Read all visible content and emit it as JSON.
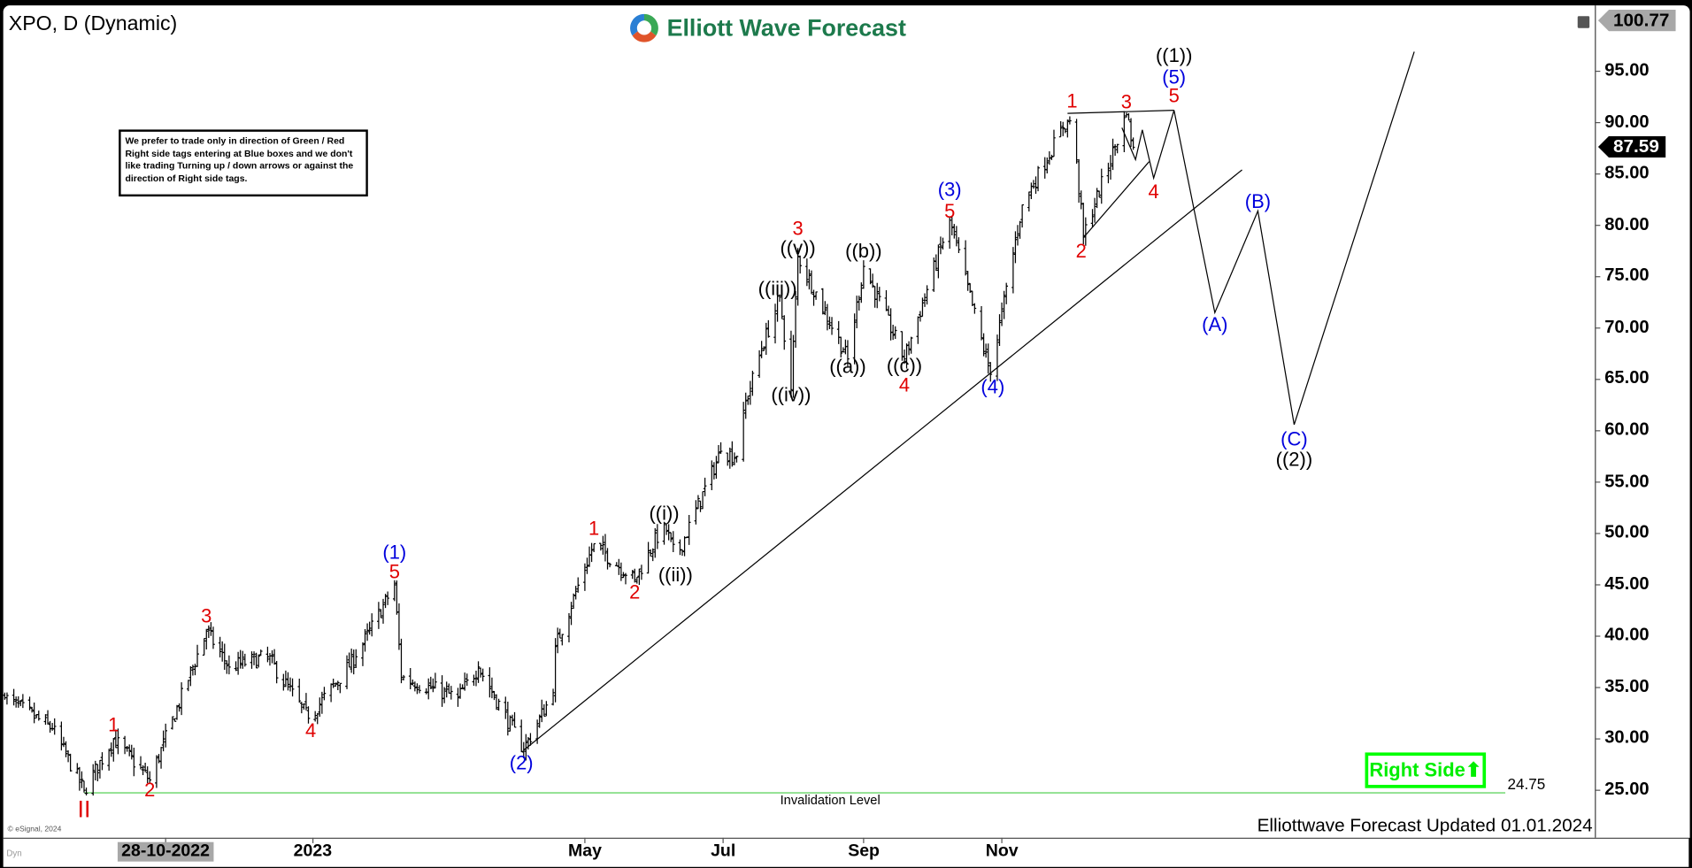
{
  "header": {
    "title": "XPO, D (Dynamic)",
    "brand": "Elliott Wave Forecast",
    "note": "We prefer to trade only in direction of Green / Red Right side tags entering at Blue boxes and we don't like trading Turning up / down arrows or against the direction of Right side tags."
  },
  "footer": {
    "updated": "Elliottwave Forecast Updated 01.01.2024",
    "copyright": "© eSignal, 2024",
    "dyn": "Dyn",
    "invalidation_label": "Invalidation Level",
    "invalidation_value": "24.75",
    "right_side": "Right Side",
    "right_side_icon": "arrow-up-icon"
  },
  "colors": {
    "red": "#e00000",
    "blue": "#0000dd",
    "green": "#00ee00",
    "brand": "#1d7a4c"
  },
  "chart_data": {
    "type": "ohlc",
    "symbol": "XPO",
    "interval": "D",
    "y_axis": {
      "ticks": [
        "25.00",
        "30.00",
        "35.00",
        "40.00",
        "45.00",
        "50.00",
        "55.00",
        "60.00",
        "65.00",
        "70.00",
        "75.00",
        "80.00",
        "85.00",
        "90.00",
        "95.00"
      ],
      "tick_values": [
        25,
        30,
        35,
        40,
        45,
        50,
        55,
        60,
        65,
        70,
        75,
        80,
        85,
        90,
        95
      ],
      "high_tag": "100.77",
      "last_price": "87.59"
    },
    "x_axis": {
      "ticks": [
        {
          "label": "28-10-2022",
          "date": "2022-10-28",
          "highlight": true
        },
        {
          "label": "2023",
          "date": "2023-01-01"
        },
        {
          "label": "May",
          "date": "2023-05-01"
        },
        {
          "label": "Jul",
          "date": "2023-07-01"
        },
        {
          "label": "Sep",
          "date": "2023-09-01"
        },
        {
          "label": "Nov",
          "date": "2023-11-01"
        }
      ]
    },
    "invalidation_level": 24.75,
    "price_swings": [
      [
        "2022-08-18",
        34
      ],
      [
        "2022-09-08",
        31
      ],
      [
        "2022-09-22",
        25
      ],
      [
        "2022-10-05",
        30
      ],
      [
        "2022-10-21",
        26
      ],
      [
        "2022-11-15",
        40.5
      ],
      [
        "2022-11-25",
        37
      ],
      [
        "2022-12-12",
        38
      ],
      [
        "2022-12-30",
        32
      ],
      [
        "2023-01-20",
        38
      ],
      [
        "2023-02-06",
        45
      ],
      [
        "2023-02-09",
        36
      ],
      [
        "2023-03-06",
        34
      ],
      [
        "2023-03-15",
        37
      ],
      [
        "2023-04-04",
        29
      ],
      [
        "2023-04-17",
        34.5
      ],
      [
        "2023-04-18",
        39
      ],
      [
        "2023-05-05",
        49
      ],
      [
        "2023-05-23",
        45.5
      ],
      [
        "2023-06-05",
        51
      ],
      [
        "2023-06-10",
        47.5
      ],
      [
        "2023-06-30",
        58
      ],
      [
        "2023-07-07",
        57.5
      ],
      [
        "2023-07-10",
        62
      ],
      [
        "2023-07-18",
        68
      ],
      [
        "2023-07-26",
        73
      ],
      [
        "2023-07-31",
        64
      ],
      [
        "2023-08-03",
        77
      ],
      [
        "2023-08-25",
        67
      ],
      [
        "2023-09-01",
        76
      ],
      [
        "2023-09-19",
        67
      ],
      [
        "2023-10-09",
        80.5
      ],
      [
        "2023-10-27",
        65.5
      ],
      [
        "2023-11-10",
        82
      ],
      [
        "2023-11-28",
        89.5
      ],
      [
        "2023-12-02",
        90.5
      ],
      [
        "2023-12-07",
        79
      ],
      [
        "2023-12-26",
        90.8
      ],
      [
        "2023-12-29",
        87.6
      ]
    ],
    "trendline": [
      [
        "2023-04-04",
        28.9
      ],
      [
        "2024-02-15",
        85.4
      ]
    ],
    "triangle_upper": [
      [
        "2023-11-30",
        90.9
      ],
      [
        "2024-01-16",
        91.2
      ]
    ],
    "triangle_lower": [
      [
        "2023-12-07",
        78.8
      ],
      [
        "2024-01-05",
        86.2
      ]
    ],
    "projection_path": [
      [
        "2023-12-24",
        89.5
      ],
      [
        "2023-12-30",
        86.4
      ],
      [
        "2024-01-02",
        89.3
      ],
      [
        "2024-01-07",
        84.6
      ],
      [
        "2024-01-16",
        91.2
      ],
      [
        "2024-02-03",
        71.5
      ],
      [
        "2024-02-22",
        81.4
      ],
      [
        "2024-03-09",
        60.6
      ],
      [
        "2024-05-01",
        96.9
      ]
    ],
    "wave_labels": [
      {
        "text": "II",
        "color": "red",
        "date": "2022-09-22",
        "price": 23.1
      },
      {
        "text": "1",
        "color": "red",
        "date": "2022-10-05",
        "price": 31.3
      },
      {
        "text": "2",
        "color": "red",
        "date": "2022-10-21",
        "price": 25.0
      },
      {
        "text": "3",
        "color": "red",
        "date": "2022-11-15",
        "price": 41.9
      },
      {
        "text": "4",
        "color": "red",
        "date": "2022-12-31",
        "price": 30.8
      },
      {
        "text": "5",
        "color": "red",
        "date": "2023-02-06",
        "price": 46.2
      },
      {
        "text": "(1)",
        "color": "blue",
        "date": "2023-02-06",
        "price": 48.1
      },
      {
        "text": "(2)",
        "color": "blue",
        "date": "2023-04-03",
        "price": 27.6
      },
      {
        "text": "1",
        "color": "red",
        "date": "2023-05-05",
        "price": 50.4
      },
      {
        "text": "2",
        "color": "red",
        "date": "2023-05-23",
        "price": 44.2
      },
      {
        "text": "((i))",
        "color": "black",
        "date": "2023-06-05",
        "price": 51.9
      },
      {
        "text": "((ii))",
        "color": "black",
        "date": "2023-06-10",
        "price": 45.9
      },
      {
        "text": "((iii))",
        "color": "black",
        "date": "2023-07-25",
        "price": 73.8
      },
      {
        "text": "((iv))",
        "color": "black",
        "date": "2023-07-31",
        "price": 63.5
      },
      {
        "text": "((v))",
        "color": "black",
        "date": "2023-08-03",
        "price": 77.8
      },
      {
        "text": "3",
        "color": "red",
        "date": "2023-08-03",
        "price": 79.7
      },
      {
        "text": "((a))",
        "color": "black",
        "date": "2023-08-25",
        "price": 66.2
      },
      {
        "text": "((b))",
        "color": "black",
        "date": "2023-09-01",
        "price": 77.4
      },
      {
        "text": "((c))",
        "color": "black",
        "date": "2023-09-19",
        "price": 66.3
      },
      {
        "text": "4",
        "color": "red",
        "date": "2023-09-19",
        "price": 64.4
      },
      {
        "text": "(3)",
        "color": "blue",
        "date": "2023-10-09",
        "price": 83.4
      },
      {
        "text": "5",
        "color": "red",
        "date": "2023-10-09",
        "price": 81.3
      },
      {
        "text": "(4)",
        "color": "blue",
        "date": "2023-10-28",
        "price": 64.2
      },
      {
        "text": "1",
        "color": "red",
        "date": "2023-12-02",
        "price": 92.1
      },
      {
        "text": "2",
        "color": "red",
        "date": "2023-12-06",
        "price": 77.4
      },
      {
        "text": "3",
        "color": "red",
        "date": "2023-12-26",
        "price": 92.0
      },
      {
        "text": "4",
        "color": "red",
        "date": "2024-01-07",
        "price": 83.2
      },
      {
        "text": "((1))",
        "color": "black",
        "date": "2024-01-16",
        "price": 96.5
      },
      {
        "text": "(5)",
        "color": "blue",
        "date": "2024-01-16",
        "price": 94.4
      },
      {
        "text": "5",
        "color": "red",
        "date": "2024-01-16",
        "price": 92.6
      },
      {
        "text": "(A)",
        "color": "blue",
        "date": "2024-02-03",
        "price": 70.3
      },
      {
        "text": "(B)",
        "color": "blue",
        "date": "2024-02-22",
        "price": 82.3
      },
      {
        "text": "(C)",
        "color": "blue",
        "date": "2024-03-09",
        "price": 59.2
      },
      {
        "text": "((2))",
        "color": "black",
        "date": "2024-03-09",
        "price": 57.2
      }
    ]
  }
}
